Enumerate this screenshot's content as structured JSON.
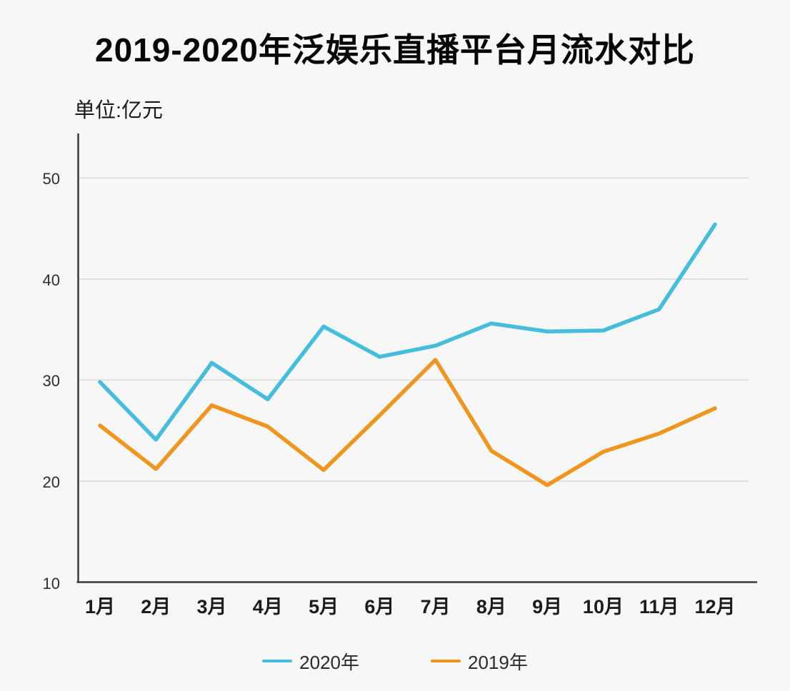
{
  "page": {
    "title": "2019-2020年泛娱乐直播平台月流水对比",
    "unit_label": "单位:亿元"
  },
  "legend": {
    "items": [
      {
        "label": "2020年",
        "color": "#45BDDD"
      },
      {
        "label": "2019年",
        "color": "#F0951E"
      }
    ]
  },
  "chart_data": {
    "type": "line",
    "title": "2019-2020年泛娱乐直播平台月流水对比",
    "unit": "亿元",
    "categories": [
      "1月",
      "2月",
      "3月",
      "4月",
      "5月",
      "6月",
      "7月",
      "8月",
      "9月",
      "10月",
      "11月",
      "12月"
    ],
    "series": [
      {
        "name": "2020年",
        "color": "#45BDDD",
        "values": [
          29.8,
          24.1,
          31.7,
          28.1,
          35.3,
          32.3,
          33.4,
          35.6,
          34.8,
          34.9,
          37.0,
          45.4
        ]
      },
      {
        "name": "2019年",
        "color": "#F0951E",
        "values": [
          25.5,
          21.2,
          27.5,
          25.4,
          21.1,
          26.5,
          32.0,
          23.0,
          19.6,
          22.9,
          24.7,
          27.2
        ]
      }
    ],
    "y_ticks": [
      10,
      20,
      30,
      40,
      50
    ],
    "ylim": [
      10,
      54.4
    ],
    "grid": true,
    "legend_position": "bottom",
    "colors": {
      "gridline": "#d8d8d8",
      "axis": "#3a3a3a"
    }
  }
}
